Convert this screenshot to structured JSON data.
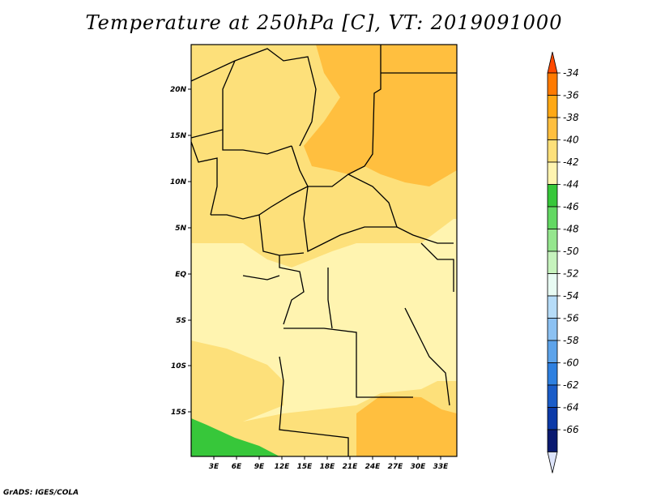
{
  "title": "Temperature at 250hPa [C], VT: 2019091000",
  "credit": "GrADS: IGES/COLA",
  "map": {
    "lat_labels": [
      "20N",
      "15N",
      "10N",
      "5N",
      "EQ",
      "5S",
      "10S",
      "15S"
    ],
    "lon_labels": [
      "3E",
      "6E",
      "9E",
      "12E",
      "15E",
      "18E",
      "21E",
      "24E",
      "27E",
      "30E",
      "33E"
    ]
  },
  "colorbar": {
    "labels": [
      "-34",
      "-36",
      "-38",
      "-40",
      "-42",
      "-44",
      "-46",
      "-48",
      "-50",
      "-52",
      "-54",
      "-56",
      "-58",
      "-60",
      "-62",
      "-64",
      "-66"
    ],
    "colors": [
      "#ff4a00",
      "#ff7a00",
      "#ffa814",
      "#ffbf3f",
      "#fde07a",
      "#fff4b0",
      "#37c73a",
      "#63d863",
      "#95e68e",
      "#c6f3bd",
      "#e8fbf3",
      "#b6dcf8",
      "#8cc1f2",
      "#5da3ea",
      "#2e80e0",
      "#1a5cc8",
      "#0c3aa8",
      "#0a1a70",
      "#dde4fa"
    ]
  }
}
